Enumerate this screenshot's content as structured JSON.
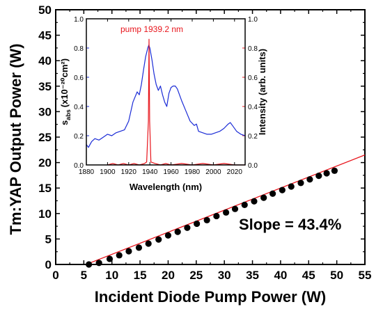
{
  "chart_data": [
    {
      "type": "scatter",
      "title": "",
      "xlabel": "Incident Diode Pump Power (W)",
      "ylabel": "Tm:YAP Output Power (W)",
      "xlim": [
        0,
        55
      ],
      "ylim": [
        0,
        50
      ],
      "xticks": [
        "0",
        "5",
        "10",
        "15",
        "20",
        "25",
        "30",
        "35",
        "40",
        "45",
        "50",
        "55"
      ],
      "yticks": [
        "0",
        "5",
        "10",
        "15",
        "20",
        "25",
        "30",
        "35",
        "40",
        "45",
        "50"
      ],
      "annotation": "Slope = 43.4%",
      "colors": {
        "points": "#000000",
        "fit": "#e8141b"
      },
      "series": [
        {
          "x": [
            5.9,
            7.7,
            9.6,
            11.3,
            13.0,
            14.8,
            16.5,
            18.3,
            20.0,
            21.7,
            23.4,
            25.1,
            26.9,
            28.6,
            30.3,
            31.9,
            33.6,
            35.3,
            37.0,
            38.6,
            40.3,
            41.9,
            43.6,
            45.2,
            46.8,
            48.2,
            49.6
          ],
          "y": [
            0.0,
            0.3,
            1.1,
            1.8,
            2.6,
            3.3,
            4.1,
            4.9,
            5.7,
            6.4,
            7.2,
            8.0,
            8.7,
            9.5,
            10.2,
            10.9,
            11.7,
            12.4,
            13.1,
            13.9,
            14.6,
            15.3,
            16.0,
            16.7,
            17.4,
            17.9,
            18.4
          ]
        }
      ],
      "fit": {
        "x": [
          5.4,
          55
        ],
        "y": [
          0.0,
          21.5
        ]
      }
    },
    {
      "type": "line",
      "title": "",
      "xlabel": "Wavelength (nm)",
      "ylabel_left": "s",
      "ylabel_left_sub": "abs",
      "ylabel_left_unit": "(x10⁻²⁰cm²)",
      "ylabel_right": "Intensity (arb. units)",
      "xlim": [
        1880,
        2030
      ],
      "ylim": [
        0,
        1.0
      ],
      "xticks": [
        "1880",
        "1900",
        "1920",
        "1940",
        "1960",
        "1980",
        "2000",
        "2020"
      ],
      "yticks_left": [
        "0.0",
        "0.2",
        "0.4",
        "0.6",
        "0.8",
        "1.0"
      ],
      "yticks_right": [
        "0.0",
        "0.2",
        "0.4",
        "0.6",
        "0.8",
        "1.0"
      ],
      "annotation": "pump 1939.2 nm",
      "colors": {
        "absorption": "#1a2bd6",
        "pump": "#e8141b"
      },
      "series": [
        {
          "x": [
            1880,
            1882,
            1885,
            1888,
            1892,
            1896,
            1900,
            1904,
            1908,
            1912,
            1916,
            1920,
            1924,
            1928,
            1930,
            1932,
            1934,
            1936,
            1938,
            1939,
            1940,
            1942,
            1944,
            1946,
            1948,
            1950,
            1952,
            1954,
            1956,
            1958,
            1960,
            1962,
            1964,
            1966,
            1970,
            1974,
            1978,
            1982,
            1984,
            1986,
            1990,
            1994,
            1998,
            2002,
            2006,
            2010,
            2014,
            2016,
            2018,
            2022,
            2026,
            2030
          ],
          "y": [
            0.14,
            0.12,
            0.16,
            0.18,
            0.17,
            0.19,
            0.21,
            0.2,
            0.22,
            0.23,
            0.24,
            0.3,
            0.43,
            0.5,
            0.48,
            0.55,
            0.65,
            0.74,
            0.8,
            0.82,
            0.8,
            0.72,
            0.62,
            0.55,
            0.51,
            0.54,
            0.48,
            0.43,
            0.4,
            0.49,
            0.53,
            0.54,
            0.54,
            0.52,
            0.44,
            0.37,
            0.3,
            0.27,
            0.28,
            0.23,
            0.22,
            0.21,
            0.21,
            0.22,
            0.23,
            0.25,
            0.28,
            0.29,
            0.27,
            0.23,
            0.21,
            0.2
          ]
        },
        {
          "x": [
            1900,
            1905,
            1910,
            1915,
            1920,
            1925,
            1930,
            1935,
            1937,
            1938.6,
            1939.2,
            1939.8,
            1941,
            1945,
            1950,
            1955,
            1960,
            1970,
            1980,
            1990,
            2000,
            2010,
            2020,
            2030
          ],
          "y": [
            0.0,
            0.01,
            0.0,
            0.01,
            0.0,
            0.01,
            0.0,
            0.01,
            0.02,
            0.3,
            0.86,
            0.3,
            0.02,
            0.01,
            0.0,
            0.01,
            0.0,
            0.01,
            0.0,
            0.01,
            0.0,
            0.01,
            0.0,
            0.0
          ]
        }
      ]
    }
  ]
}
